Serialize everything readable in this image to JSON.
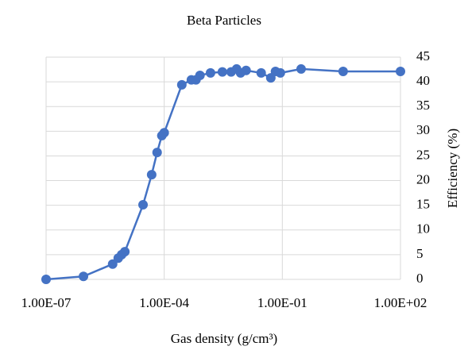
{
  "chart_data": {
    "type": "line",
    "title": "Beta Particles",
    "xlabel": "Gas density (g/cm³)",
    "ylabel": "Efficiency (%)",
    "xscale": "log",
    "y_axis_side": "right",
    "grid": true,
    "markers": true,
    "xlim": [
      1e-07,
      100
    ],
    "xticks": [
      {
        "value": 1e-07,
        "label": "1.00E-07"
      },
      {
        "value": 0.0001,
        "label": "1.00E-04"
      },
      {
        "value": 0.1,
        "label": "1.00E-01"
      },
      {
        "value": 100,
        "label": "1.00E+02"
      }
    ],
    "ylim": [
      0,
      45
    ],
    "yticks": [
      0,
      5,
      10,
      15,
      20,
      25,
      30,
      35,
      40,
      45
    ],
    "series": [
      {
        "color": "#4472c4",
        "x": [
          1e-07,
          8.9e-07,
          4.9e-06,
          6.8e-06,
          8.3e-06,
          1e-05,
          2.9e-05,
          4.8e-05,
          6.6e-05,
          8.7e-05,
          0.0001,
          0.00028,
          0.00049,
          0.00064,
          0.00081,
          0.0015,
          0.003,
          0.005,
          0.0069,
          0.0087,
          0.012,
          0.029,
          0.051,
          0.067,
          0.089,
          0.3,
          3.5,
          100
        ],
        "values": [
          0,
          0.6,
          3.1,
          4.3,
          5.0,
          5.6,
          15.1,
          21.2,
          25.7,
          29.1,
          29.7,
          39.4,
          40.4,
          40.4,
          41.3,
          41.8,
          42.0,
          42.0,
          42.6,
          41.8,
          42.3,
          41.8,
          40.8,
          42.1,
          41.8,
          42.6,
          42.1,
          42.1
        ]
      }
    ]
  }
}
